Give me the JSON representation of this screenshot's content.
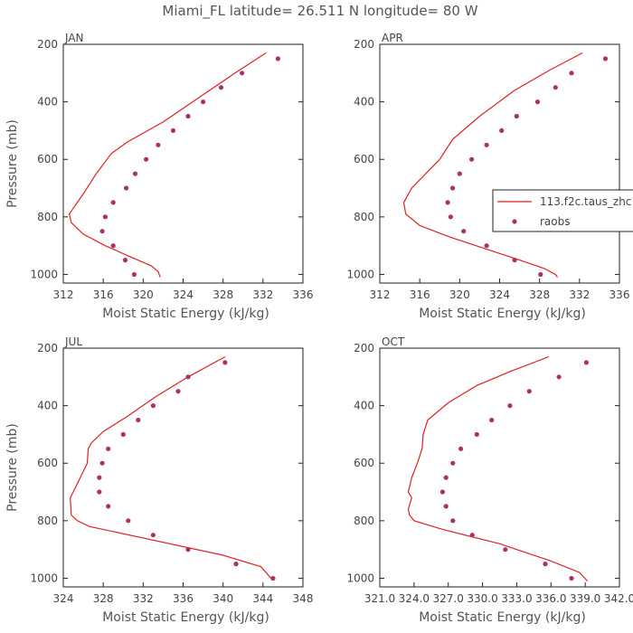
{
  "title": "Miami_FL   latitude= 26.511 N longitude= 80 W",
  "colors": {
    "model": "#e02020",
    "obs": "#b03060",
    "axis": "#222222"
  },
  "legend": {
    "model_label": "113.f2c.taus_zhc",
    "obs_label": "raobs"
  },
  "chart_data": [
    {
      "type": "line",
      "panel": "JAN",
      "xlabel": "Moist Static Energy (kJ/kg)",
      "ylabel": "Pressure (mb)",
      "xlim": [
        312,
        336
      ],
      "ylim": [
        1030,
        200
      ],
      "xticks": [
        "312",
        "316",
        "320",
        "324",
        "328",
        "332",
        "336"
      ],
      "xtick_values": [
        312,
        316,
        320,
        324,
        328,
        332,
        336
      ],
      "yticks": [
        "200",
        "400",
        "600",
        "800",
        "1000"
      ],
      "ytick_values": [
        200,
        400,
        600,
        800,
        1000
      ],
      "series": [
        {
          "name": "113.f2c.taus_zhc",
          "kind": "line",
          "x": [
            332.3,
            329.2,
            325.8,
            322.0,
            318.4,
            316.8,
            315.3,
            314.0,
            313.0,
            312.6,
            312.8,
            314.0,
            316.2,
            318.8,
            320.8,
            321.5,
            321.7
          ],
          "y": [
            230,
            300,
            380,
            470,
            540,
            580,
            650,
            720,
            770,
            790,
            820,
            860,
            900,
            940,
            970,
            990,
            1010
          ]
        },
        {
          "name": "raobs",
          "kind": "points",
          "x": [
            333.5,
            329.9,
            327.8,
            326.0,
            324.5,
            323.0,
            321.5,
            320.3,
            319.2,
            318.3,
            317.0,
            316.2,
            315.9,
            317.0,
            318.2,
            319.1
          ],
          "y": [
            250,
            300,
            350,
            400,
            450,
            500,
            550,
            600,
            650,
            700,
            750,
            800,
            850,
            900,
            950,
            1000
          ]
        }
      ]
    },
    {
      "type": "line",
      "panel": "APR",
      "xlabel": "Moist Static Energy (kJ/kg)",
      "ylabel": "",
      "xlim": [
        312,
        336
      ],
      "ylim": [
        1030,
        200
      ],
      "xticks": [
        "312",
        "316",
        "320",
        "324",
        "328",
        "332",
        "336"
      ],
      "xtick_values": [
        312,
        316,
        320,
        324,
        328,
        332,
        336
      ],
      "yticks": [
        "200",
        "400",
        "600",
        "800",
        "1000"
      ],
      "ytick_values": [
        200,
        400,
        600,
        800,
        1000
      ],
      "series": [
        {
          "name": "113.f2c.taus_zhc",
          "kind": "line",
          "x": [
            332.3,
            329.0,
            325.5,
            322.0,
            319.3,
            318.0,
            316.6,
            315.2,
            314.4,
            314.6,
            316.0,
            319.0,
            322.5,
            326.0,
            328.5,
            329.6,
            329.8
          ],
          "y": [
            230,
            290,
            360,
            450,
            530,
            600,
            650,
            700,
            750,
            790,
            830,
            870,
            910,
            950,
            980,
            1000,
            1010
          ]
        },
        {
          "name": "raobs",
          "kind": "points",
          "x": [
            334.6,
            331.2,
            329.6,
            327.8,
            325.7,
            324.2,
            322.7,
            321.2,
            320.0,
            319.3,
            318.8,
            319.1,
            320.4,
            322.7,
            325.5,
            328.1
          ],
          "y": [
            250,
            300,
            350,
            400,
            450,
            500,
            550,
            600,
            650,
            700,
            750,
            800,
            850,
            900,
            950,
            1000
          ]
        }
      ]
    },
    {
      "type": "line",
      "panel": "JUL",
      "xlabel": "Moist Static Energy (kJ/kg)",
      "ylabel": "Pressure (mb)",
      "xlim": [
        324,
        348
      ],
      "ylim": [
        1030,
        200
      ],
      "xticks": [
        "324",
        "328",
        "332",
        "336",
        "340",
        "344",
        "348"
      ],
      "xtick_values": [
        324,
        328,
        332,
        336,
        340,
        344,
        348
      ],
      "yticks": [
        "200",
        "400",
        "600",
        "800",
        "1000"
      ],
      "ytick_values": [
        200,
        400,
        600,
        800,
        1000
      ],
      "series": [
        {
          "name": "113.f2c.taus_zhc",
          "kind": "line",
          "x": [
            340.2,
            336.5,
            333.2,
            330.3,
            328.0,
            326.8,
            326.5,
            326.4,
            325.7,
            325.0,
            324.7,
            324.8,
            325.4,
            326.6,
            332.0,
            340.0,
            343.8,
            344.8
          ],
          "y": [
            230,
            300,
            370,
            440,
            490,
            530,
            550,
            600,
            650,
            700,
            720,
            780,
            800,
            820,
            860,
            920,
            960,
            1000
          ]
        },
        {
          "name": "raobs",
          "kind": "points",
          "x": [
            340.2,
            336.5,
            335.5,
            333.0,
            331.5,
            330.0,
            328.5,
            327.9,
            327.6,
            327.6,
            328.5,
            330.5,
            333.0,
            336.5,
            341.3,
            345.0
          ],
          "y": [
            250,
            300,
            350,
            400,
            450,
            500,
            550,
            600,
            650,
            700,
            750,
            800,
            850,
            900,
            950,
            1000
          ]
        }
      ]
    },
    {
      "type": "line",
      "panel": "OCT",
      "xlabel": "Moist Static Energy (kJ/kg)",
      "ylabel": "",
      "xlim": [
        321.0,
        342.0
      ],
      "ylim": [
        1030,
        200
      ],
      "xticks": [
        "321.0",
        "324.0",
        "327.0",
        "330.0",
        "333.0",
        "336.0",
        "339.0",
        "342.0"
      ],
      "xtick_values": [
        321.0,
        324.0,
        327.0,
        330.0,
        333.0,
        336.0,
        339.0,
        342.0
      ],
      "yticks": [
        "200",
        "400",
        "600",
        "800",
        "1000"
      ],
      "ytick_values": [
        200,
        400,
        600,
        800,
        1000
      ],
      "series": [
        {
          "name": "113.f2c.taus_zhc",
          "kind": "line",
          "x": [
            335.8,
            332.5,
            329.5,
            327.0,
            325.2,
            324.8,
            324.7,
            324.3,
            323.8,
            323.5,
            323.8,
            323.5,
            323.6,
            324.0,
            326.5,
            331.5,
            336.0,
            338.5,
            339.2
          ],
          "y": [
            230,
            280,
            330,
            390,
            450,
            500,
            550,
            600,
            650,
            700,
            720,
            760,
            780,
            800,
            830,
            880,
            940,
            980,
            1010
          ]
        },
        {
          "name": "raobs",
          "kind": "points",
          "x": [
            339.1,
            336.7,
            334.1,
            332.4,
            330.8,
            329.5,
            328.1,
            327.4,
            326.8,
            326.5,
            326.8,
            327.4,
            329.1,
            332.0,
            335.5,
            337.8
          ],
          "y": [
            250,
            300,
            350,
            400,
            450,
            500,
            550,
            600,
            650,
            700,
            750,
            800,
            850,
            900,
            950,
            1000
          ]
        }
      ]
    }
  ]
}
